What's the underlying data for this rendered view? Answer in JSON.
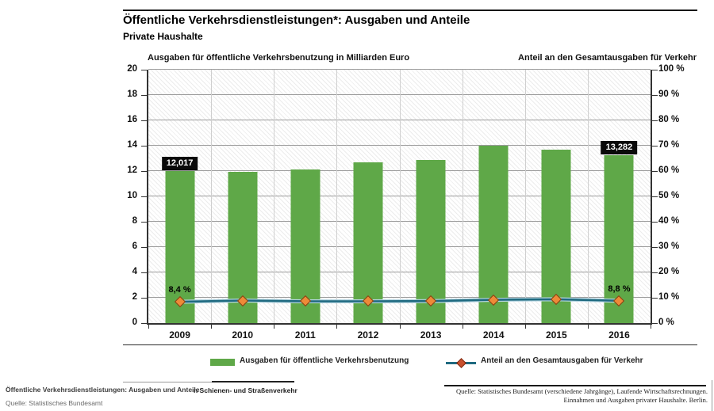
{
  "header": {
    "title": "Öffentliche Verkehrsdienstleistungen*: Ausgaben und Anteile",
    "subtitle": "Private Haushalte"
  },
  "axes": {
    "left_title": "Ausgaben für öffentliche Verkehrsbenutzung in Milliarden Euro",
    "right_title": "Anteil an den Gesamtausgaben für Verkehr",
    "left_ticks": [
      "20",
      "18",
      "16",
      "14",
      "12",
      "10",
      "8",
      "6",
      "4",
      "2",
      "0"
    ],
    "right_ticks": [
      "100 %",
      "90 %",
      "80 %",
      "70 %",
      "60 %",
      "50 %",
      "40 %",
      "30 %",
      "20 %",
      "10 %",
      "0 %"
    ]
  },
  "chart_data": {
    "type": "bar",
    "categories": [
      "2009",
      "2010",
      "2011",
      "2012",
      "2013",
      "2014",
      "2015",
      "2016"
    ],
    "series": [
      {
        "name": "Ausgaben für öffentliche Verkehrsbenutzung",
        "type": "bar",
        "axis": "left",
        "color": "#5fa848",
        "values": [
          12.017,
          11.95,
          12.1,
          12.7,
          12.9,
          14.0,
          13.7,
          13.282
        ]
      },
      {
        "name": "Anteil an den Gesamtausgaben für Verkehr",
        "type": "line",
        "axis": "right",
        "color": "#1f6a80",
        "marker_color": "#ee8a38",
        "values": [
          8.4,
          8.9,
          8.6,
          8.6,
          8.7,
          9.2,
          9.4,
          8.8
        ]
      }
    ],
    "ylim_left": [
      0,
      20
    ],
    "ylim_right": [
      0,
      100
    ],
    "grid": true,
    "legend_position": "bottom",
    "annotations": [
      {
        "series": 0,
        "index": 0,
        "text": "12,017"
      },
      {
        "series": 0,
        "index": 7,
        "text": "13,282"
      },
      {
        "series": 1,
        "index": 0,
        "text": "8,4 %"
      },
      {
        "series": 1,
        "index": 7,
        "text": "8,8 %"
      }
    ]
  },
  "legend": {
    "items": [
      {
        "label": "Ausgaben für öffentliche Verkehrsbenutzung",
        "type": "bar",
        "color": "#5fa848"
      },
      {
        "label": "Anteil an den Gesamtausgaben für Verkehr",
        "type": "line",
        "color": "#1f6a80"
      }
    ]
  },
  "footer": {
    "left_caption": "Öffentliche Verkehrsdienstleistungen: Ausgaben und Anteile",
    "left_caption_overlap": "n Schienen- und Straßenverkehr",
    "left_source": "Quelle: Statistisches Bundesamt",
    "right_source_line1": "Quelle: Statistisches Bundesamt (verschiedene Jahrgänge), Laufende Wirtschaftsrechnungen.",
    "right_source_line2": "Einnahmen und Ausgaben privater Haushalte. Berlin."
  }
}
